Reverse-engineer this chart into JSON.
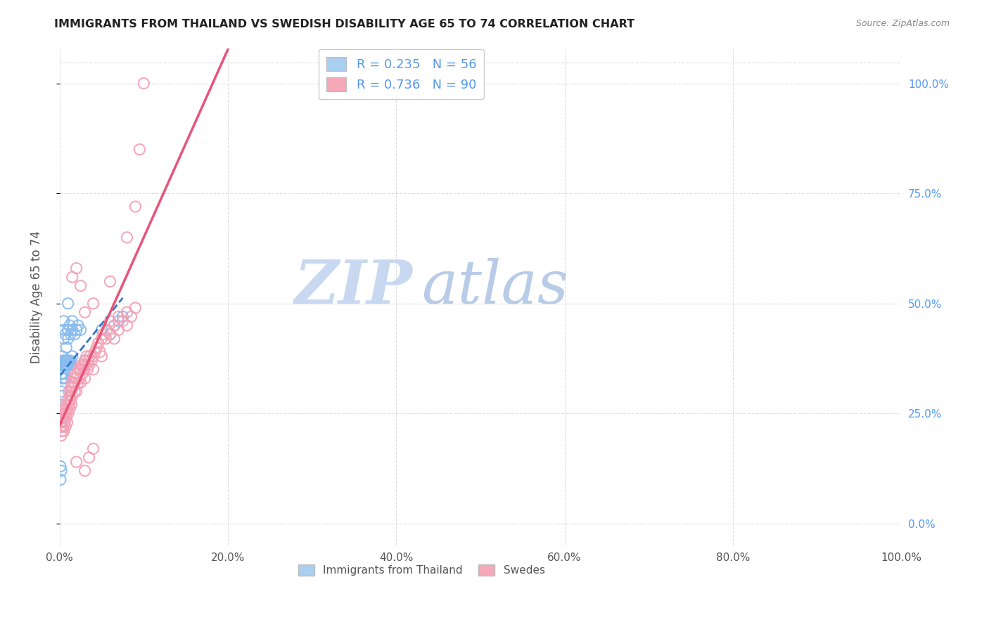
{
  "title": "IMMIGRANTS FROM THAILAND VS SWEDISH DISABILITY AGE 65 TO 74 CORRELATION CHART",
  "source": "Source: ZipAtlas.com",
  "ylabel": "Disability Age 65 to 74",
  "watermark_line1": "ZIP",
  "watermark_line2": "atlas",
  "series": [
    {
      "label": "Immigrants from Thailand",
      "R": 0.235,
      "N": 56,
      "color": "#88bbee",
      "line_color": "#3377cc",
      "line_style": "--",
      "points": [
        [
          0.005,
          0.44
        ],
        [
          0.005,
          0.42
        ],
        [
          0.005,
          0.46
        ],
        [
          0.007,
          0.43
        ],
        [
          0.008,
          0.4
        ],
        [
          0.01,
          0.44
        ],
        [
          0.01,
          0.42
        ],
        [
          0.012,
          0.45
        ],
        [
          0.013,
          0.43
        ],
        [
          0.015,
          0.44
        ],
        [
          0.015,
          0.46
        ],
        [
          0.018,
          0.43
        ],
        [
          0.02,
          0.44
        ],
        [
          0.022,
          0.45
        ],
        [
          0.025,
          0.44
        ],
        [
          0.003,
          0.38
        ],
        [
          0.003,
          0.36
        ],
        [
          0.004,
          0.37
        ],
        [
          0.005,
          0.36
        ],
        [
          0.006,
          0.37
        ],
        [
          0.006,
          0.36
        ],
        [
          0.007,
          0.36
        ],
        [
          0.007,
          0.37
        ],
        [
          0.008,
          0.36
        ],
        [
          0.008,
          0.37
        ],
        [
          0.009,
          0.37
        ],
        [
          0.009,
          0.36
        ],
        [
          0.01,
          0.36
        ],
        [
          0.01,
          0.37
        ],
        [
          0.011,
          0.37
        ],
        [
          0.012,
          0.36
        ],
        [
          0.013,
          0.37
        ],
        [
          0.014,
          0.36
        ],
        [
          0.002,
          0.34
        ],
        [
          0.003,
          0.33
        ],
        [
          0.004,
          0.34
        ],
        [
          0.005,
          0.33
        ],
        [
          0.006,
          0.34
        ],
        [
          0.007,
          0.33
        ],
        [
          0.002,
          0.3
        ],
        [
          0.003,
          0.29
        ],
        [
          0.001,
          0.27
        ],
        [
          0.002,
          0.26
        ],
        [
          0.001,
          0.23
        ],
        [
          0.002,
          0.22
        ],
        [
          0.001,
          0.13
        ],
        [
          0.001,
          0.1
        ],
        [
          0.002,
          0.12
        ],
        [
          0.01,
          0.5
        ],
        [
          0.015,
          0.38
        ],
        [
          0.03,
          0.37
        ],
        [
          0.05,
          0.44
        ],
        [
          0.06,
          0.43
        ],
        [
          0.065,
          0.45
        ],
        [
          0.07,
          0.46
        ],
        [
          0.075,
          0.47
        ]
      ]
    },
    {
      "label": "Swedes",
      "R": 0.736,
      "N": 90,
      "color": "#f4a0b5",
      "line_color": "#e8537a",
      "line_style": "-",
      "points": [
        [
          0.001,
          0.22
        ],
        [
          0.002,
          0.24
        ],
        [
          0.002,
          0.2
        ],
        [
          0.003,
          0.23
        ],
        [
          0.003,
          0.21
        ],
        [
          0.004,
          0.25
        ],
        [
          0.004,
          0.22
        ],
        [
          0.005,
          0.24
        ],
        [
          0.005,
          0.21
        ],
        [
          0.006,
          0.26
        ],
        [
          0.006,
          0.23
        ],
        [
          0.007,
          0.25
        ],
        [
          0.007,
          0.22
        ],
        [
          0.008,
          0.27
        ],
        [
          0.008,
          0.24
        ],
        [
          0.009,
          0.26
        ],
        [
          0.009,
          0.23
        ],
        [
          0.01,
          0.28
        ],
        [
          0.01,
          0.25
        ],
        [
          0.011,
          0.27
        ],
        [
          0.011,
          0.3
        ],
        [
          0.012,
          0.29
        ],
        [
          0.012,
          0.26
        ],
        [
          0.013,
          0.3
        ],
        [
          0.013,
          0.28
        ],
        [
          0.014,
          0.31
        ],
        [
          0.014,
          0.27
        ],
        [
          0.015,
          0.32
        ],
        [
          0.015,
          0.29
        ],
        [
          0.016,
          0.31
        ],
        [
          0.017,
          0.33
        ],
        [
          0.018,
          0.3
        ],
        [
          0.018,
          0.32
        ],
        [
          0.019,
          0.34
        ],
        [
          0.02,
          0.33
        ],
        [
          0.02,
          0.3
        ],
        [
          0.021,
          0.34
        ],
        [
          0.022,
          0.32
        ],
        [
          0.023,
          0.35
        ],
        [
          0.024,
          0.33
        ],
        [
          0.025,
          0.35
        ],
        [
          0.025,
          0.32
        ],
        [
          0.026,
          0.36
        ],
        [
          0.027,
          0.34
        ],
        [
          0.028,
          0.36
        ],
        [
          0.029,
          0.35
        ],
        [
          0.03,
          0.37
        ],
        [
          0.03,
          0.33
        ],
        [
          0.031,
          0.36
        ],
        [
          0.032,
          0.38
        ],
        [
          0.033,
          0.35
        ],
        [
          0.034,
          0.37
        ],
        [
          0.035,
          0.36
        ],
        [
          0.036,
          0.38
        ],
        [
          0.038,
          0.37
        ],
        [
          0.04,
          0.38
        ],
        [
          0.04,
          0.35
        ],
        [
          0.042,
          0.39
        ],
        [
          0.044,
          0.4
        ],
        [
          0.046,
          0.41
        ],
        [
          0.048,
          0.39
        ],
        [
          0.05,
          0.42
        ],
        [
          0.05,
          0.38
        ],
        [
          0.052,
          0.43
        ],
        [
          0.055,
          0.42
        ],
        [
          0.056,
          0.44
        ],
        [
          0.06,
          0.43
        ],
        [
          0.06,
          0.46
        ],
        [
          0.065,
          0.45
        ],
        [
          0.065,
          0.42
        ],
        [
          0.07,
          0.44
        ],
        [
          0.07,
          0.47
        ],
        [
          0.075,
          0.46
        ],
        [
          0.08,
          0.48
        ],
        [
          0.08,
          0.45
        ],
        [
          0.085,
          0.47
        ],
        [
          0.09,
          0.49
        ],
        [
          0.02,
          0.14
        ],
        [
          0.03,
          0.12
        ],
        [
          0.035,
          0.15
        ],
        [
          0.04,
          0.17
        ],
        [
          0.015,
          0.56
        ],
        [
          0.02,
          0.58
        ],
        [
          0.03,
          0.48
        ],
        [
          0.025,
          0.54
        ],
        [
          0.04,
          0.5
        ],
        [
          0.06,
          0.55
        ],
        [
          0.08,
          0.65
        ],
        [
          0.09,
          0.72
        ],
        [
          0.1,
          1.0
        ],
        [
          0.095,
          0.85
        ]
      ]
    }
  ],
  "xlim": [
    0.0,
    1.0
  ],
  "ylim": [
    -0.05,
    1.08
  ],
  "xtick_labels": [
    "0.0%",
    "20.0%",
    "40.0%",
    "60.0%",
    "80.0%",
    "100.0%"
  ],
  "xtick_vals": [
    0.0,
    0.2,
    0.4,
    0.6,
    0.8,
    1.0
  ],
  "ytick_labels_right": [
    "0.0%",
    "25.0%",
    "50.0%",
    "75.0%",
    "100.0%"
  ],
  "ytick_vals": [
    0.0,
    0.25,
    0.5,
    0.75,
    1.0
  ],
  "grid_color": "#dddddd",
  "background_color": "#ffffff",
  "title_color": "#222222",
  "right_label_color": "#5599ee",
  "watermark_color": "#c8d8f0",
  "legend_box_colors": [
    "#aacff0",
    "#f4a8b8"
  ]
}
